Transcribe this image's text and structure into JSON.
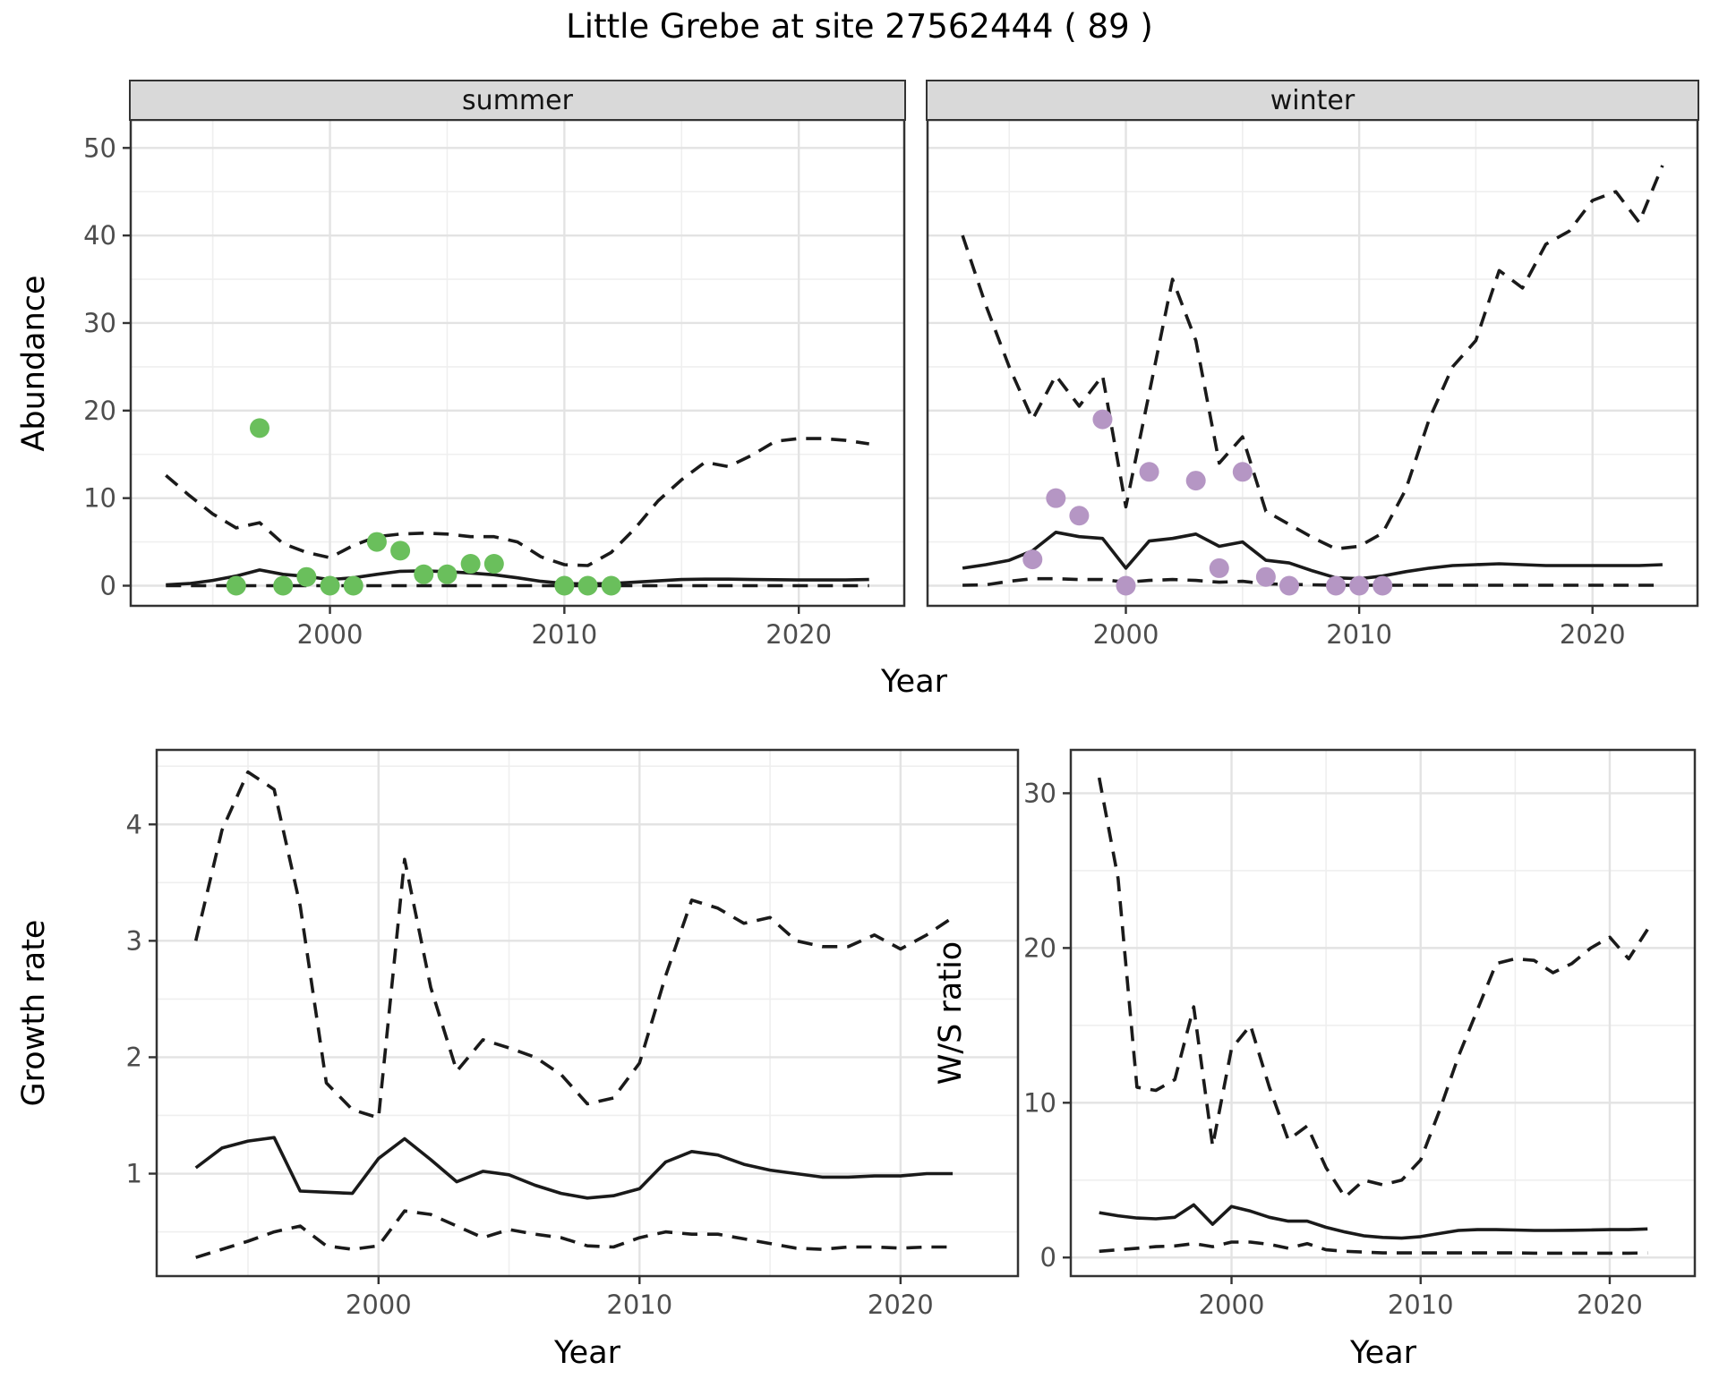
{
  "title": "Little Grebe at site 27562444 ( 89 )",
  "facets": {
    "summer": "summer",
    "winter": "winter"
  },
  "axes": {
    "abundance": "Abundance",
    "year": "Year",
    "growth_rate": "Growth rate",
    "ws_ratio": "W/S ratio"
  },
  "colors": {
    "summer_point": "#6abf5c",
    "winter_point": "#b596c4",
    "line": "#1a1a1a",
    "grid_major": "#e3e3e3",
    "grid_minor": "#efefef",
    "panel_border": "#333333",
    "tick_label": "#4d4d4d",
    "strip_bg": "#d9d9d9"
  },
  "chart_data": [
    {
      "type": "line",
      "id": "abundance-summer",
      "facet": "summer",
      "ylabel": "Abundance",
      "xlabel": "Year",
      "x_domain": [
        1991.5,
        2024.5
      ],
      "y_domain": [
        -2.3,
        53.2
      ],
      "x_ticks": [
        2000,
        2010,
        2020
      ],
      "x_minor": [
        1995,
        2005,
        2015
      ],
      "y_ticks": [
        0,
        10,
        20,
        30,
        40,
        50
      ],
      "y_minor": [
        5,
        15,
        25,
        35,
        45
      ],
      "x_years": [
        1993,
        1994,
        1995,
        1996,
        1997,
        1998,
        1999,
        2000,
        2001,
        2002,
        2003,
        2004,
        2005,
        2006,
        2007,
        2008,
        2009,
        2010,
        2011,
        2012,
        2013,
        2014,
        2015,
        2016,
        2017,
        2018,
        2019,
        2020,
        2021,
        2022,
        2023
      ],
      "series": [
        {
          "name": "fit",
          "style": "solid",
          "values": [
            0.1,
            0.25,
            0.6,
            1.1,
            1.8,
            1.3,
            1.05,
            0.7,
            0.9,
            1.3,
            1.65,
            1.7,
            1.6,
            1.45,
            1.25,
            0.9,
            0.5,
            0.25,
            0.2,
            0.25,
            0.4,
            0.55,
            0.7,
            0.75,
            0.75,
            0.7,
            0.68,
            0.65,
            0.65,
            0.65,
            0.7
          ]
        },
        {
          "name": "upper-ci",
          "style": "dashed",
          "values": [
            12.6,
            10.3,
            8.2,
            6.6,
            7.2,
            4.8,
            3.8,
            3.2,
            4.6,
            5.6,
            5.9,
            6.0,
            5.9,
            5.6,
            5.6,
            5.0,
            3.3,
            2.4,
            2.3,
            3.8,
            6.5,
            9.7,
            12.1,
            14.1,
            13.6,
            14.9,
            16.5,
            16.8,
            16.8,
            16.6,
            16.2
          ]
        },
        {
          "name": "lower-ci",
          "style": "dashed",
          "values": [
            0,
            0,
            0,
            0,
            0,
            0,
            0,
            0,
            0,
            0,
            0,
            0,
            0,
            0,
            0,
            0,
            0,
            0,
            0,
            0,
            0,
            0,
            0,
            0,
            0,
            0,
            0,
            0,
            0,
            0,
            0
          ]
        },
        {
          "name": "observations",
          "style": "points",
          "color": "#6abf5c",
          "data": [
            [
              1996,
              0
            ],
            [
              1997,
              18
            ],
            [
              1998,
              0
            ],
            [
              1999,
              1
            ],
            [
              2000,
              0
            ],
            [
              2001,
              0
            ],
            [
              2002,
              5
            ],
            [
              2003,
              4
            ],
            [
              2004,
              1.3
            ],
            [
              2005,
              1.3
            ],
            [
              2006,
              2.5
            ],
            [
              2007,
              2.5
            ],
            [
              2010,
              0
            ],
            [
              2011,
              0
            ],
            [
              2012,
              0
            ]
          ]
        }
      ]
    },
    {
      "type": "line",
      "id": "abundance-winter",
      "facet": "winter",
      "ylabel": "Abundance",
      "xlabel": "Year",
      "x_domain": [
        1991.5,
        2024.5
      ],
      "y_domain": [
        -2.3,
        53.2
      ],
      "x_ticks": [
        2000,
        2010,
        2020
      ],
      "x_minor": [
        1995,
        2005,
        2015
      ],
      "y_ticks": [
        0,
        10,
        20,
        30,
        40,
        50
      ],
      "y_minor": [
        5,
        15,
        25,
        35,
        45
      ],
      "x_years": [
        1993,
        1994,
        1995,
        1996,
        1997,
        1998,
        1999,
        2000,
        2001,
        2002,
        2003,
        2004,
        2005,
        2006,
        2007,
        2008,
        2009,
        2010,
        2011,
        2012,
        2013,
        2014,
        2015,
        2016,
        2017,
        2018,
        2019,
        2020,
        2021,
        2022,
        2023
      ],
      "series": [
        {
          "name": "fit",
          "style": "solid",
          "values": [
            2.0,
            2.4,
            2.9,
            4.0,
            6.1,
            5.6,
            5.4,
            2.0,
            5.1,
            5.4,
            5.9,
            4.5,
            5.0,
            2.9,
            2.6,
            1.7,
            0.9,
            0.8,
            1.1,
            1.6,
            2.0,
            2.3,
            2.4,
            2.5,
            2.4,
            2.3,
            2.3,
            2.3,
            2.3,
            2.3,
            2.4
          ]
        },
        {
          "name": "upper-ci",
          "style": "dashed",
          "values": [
            40,
            32,
            25,
            19,
            24,
            20.5,
            24,
            9,
            22,
            35,
            28,
            14,
            17,
            8.5,
            7,
            5.5,
            4.2,
            4.5,
            6,
            11,
            19,
            25,
            28,
            36,
            34,
            39,
            40.5,
            44,
            45,
            41.5,
            48
          ]
        },
        {
          "name": "lower-ci",
          "style": "dashed",
          "values": [
            0.05,
            0.1,
            0.5,
            0.8,
            0.8,
            0.7,
            0.7,
            0.4,
            0.6,
            0.7,
            0.6,
            0.4,
            0.5,
            0.2,
            0.15,
            0.1,
            0.05,
            0.05,
            0.05,
            0.05,
            0.05,
            0.05,
            0.05,
            0.05,
            0.05,
            0.05,
            0.05,
            0.05,
            0.05,
            0.05,
            0.05
          ]
        },
        {
          "name": "observations",
          "style": "points",
          "color": "#b596c4",
          "data": [
            [
              1996,
              3
            ],
            [
              1997,
              10
            ],
            [
              1998,
              8
            ],
            [
              1999,
              19
            ],
            [
              2000,
              0
            ],
            [
              2001,
              13
            ],
            [
              2003,
              12
            ],
            [
              2004,
              2
            ],
            [
              2005,
              13
            ],
            [
              2006,
              1
            ],
            [
              2007,
              0
            ],
            [
              2009,
              0
            ],
            [
              2010,
              0
            ],
            [
              2011,
              0
            ]
          ]
        }
      ]
    },
    {
      "type": "line",
      "id": "growth-rate",
      "ylabel": "Growth rate",
      "xlabel": "Year",
      "x_domain": [
        1991.5,
        2024.5
      ],
      "y_domain": [
        0.12,
        4.64
      ],
      "x_ticks": [
        2000,
        2010,
        2020
      ],
      "x_minor": [
        1995,
        2005,
        2015
      ],
      "y_ticks": [
        1,
        2,
        3,
        4
      ],
      "y_minor": [
        0.5,
        1.5,
        2.5,
        3.5,
        4.5
      ],
      "x_years": [
        1993,
        1994,
        1995,
        1996,
        1997,
        1998,
        1999,
        2000,
        2001,
        2002,
        2003,
        2004,
        2005,
        2006,
        2007,
        2008,
        2009,
        2010,
        2011,
        2012,
        2013,
        2014,
        2015,
        2016,
        2017,
        2018,
        2019,
        2020,
        2021,
        2022
      ],
      "series": [
        {
          "name": "fit",
          "style": "solid",
          "values": [
            1.05,
            1.22,
            1.28,
            1.31,
            0.85,
            0.84,
            0.83,
            1.13,
            1.3,
            1.12,
            0.93,
            1.02,
            0.99,
            0.9,
            0.83,
            0.79,
            0.81,
            0.87,
            1.1,
            1.19,
            1.16,
            1.08,
            1.03,
            1.0,
            0.97,
            0.97,
            0.98,
            0.98,
            1.0,
            1.0
          ]
        },
        {
          "name": "upper-ci",
          "style": "dashed",
          "values": [
            3.0,
            3.95,
            4.45,
            4.3,
            3.3,
            1.78,
            1.55,
            1.48,
            3.7,
            2.6,
            1.88,
            2.15,
            2.08,
            2.0,
            1.85,
            1.6,
            1.65,
            1.95,
            2.7,
            3.35,
            3.28,
            3.15,
            3.2,
            3.0,
            2.95,
            2.95,
            3.05,
            2.93,
            3.05,
            3.2
          ]
        },
        {
          "name": "lower-ci",
          "style": "dashed",
          "values": [
            0.28,
            0.35,
            0.42,
            0.5,
            0.55,
            0.38,
            0.35,
            0.38,
            0.68,
            0.65,
            0.55,
            0.45,
            0.52,
            0.48,
            0.45,
            0.38,
            0.37,
            0.45,
            0.5,
            0.48,
            0.48,
            0.44,
            0.4,
            0.36,
            0.35,
            0.37,
            0.37,
            0.36,
            0.37,
            0.37
          ]
        }
      ]
    },
    {
      "type": "line",
      "id": "ws-ratio",
      "ylabel": "W/S ratio",
      "xlabel": "Year",
      "x_domain": [
        1991.5,
        2024.5
      ],
      "y_domain": [
        -1.2,
        32.8
      ],
      "x_ticks": [
        2000,
        2010,
        2020
      ],
      "x_minor": [
        1995,
        2005,
        2015
      ],
      "y_ticks": [
        0,
        10,
        20,
        30
      ],
      "y_minor": [
        5,
        15,
        25
      ],
      "x_years": [
        1993,
        1994,
        1995,
        1996,
        1997,
        1998,
        1999,
        2000,
        2001,
        2002,
        2003,
        2004,
        2005,
        2006,
        2007,
        2008,
        2009,
        2010,
        2011,
        2012,
        2013,
        2014,
        2015,
        2016,
        2017,
        2018,
        2019,
        2020,
        2021,
        2022
      ],
      "series": [
        {
          "name": "fit",
          "style": "solid",
          "values": [
            2.9,
            2.7,
            2.55,
            2.5,
            2.6,
            3.4,
            2.15,
            3.3,
            3.0,
            2.6,
            2.35,
            2.35,
            1.95,
            1.65,
            1.4,
            1.3,
            1.25,
            1.35,
            1.55,
            1.75,
            1.8,
            1.8,
            1.78,
            1.75,
            1.75,
            1.76,
            1.78,
            1.8,
            1.8,
            1.85
          ]
        },
        {
          "name": "upper-ci",
          "style": "dashed",
          "values": [
            31,
            24.5,
            11,
            10.8,
            11.5,
            16.2,
            7.2,
            13.5,
            15,
            11,
            7.6,
            8.5,
            5.8,
            3.9,
            5,
            4.7,
            5,
            6.3,
            9.5,
            13,
            16,
            19,
            19.3,
            19.2,
            18.4,
            19,
            20,
            20.7,
            19.3,
            21.2
          ]
        },
        {
          "name": "lower-ci",
          "style": "dashed",
          "values": [
            0.4,
            0.5,
            0.6,
            0.7,
            0.75,
            0.9,
            0.7,
            1.0,
            1.0,
            0.85,
            0.6,
            0.9,
            0.5,
            0.4,
            0.35,
            0.3,
            0.3,
            0.3,
            0.3,
            0.3,
            0.3,
            0.3,
            0.3,
            0.28,
            0.28,
            0.28,
            0.28,
            0.28,
            0.28,
            0.3
          ]
        }
      ]
    }
  ]
}
